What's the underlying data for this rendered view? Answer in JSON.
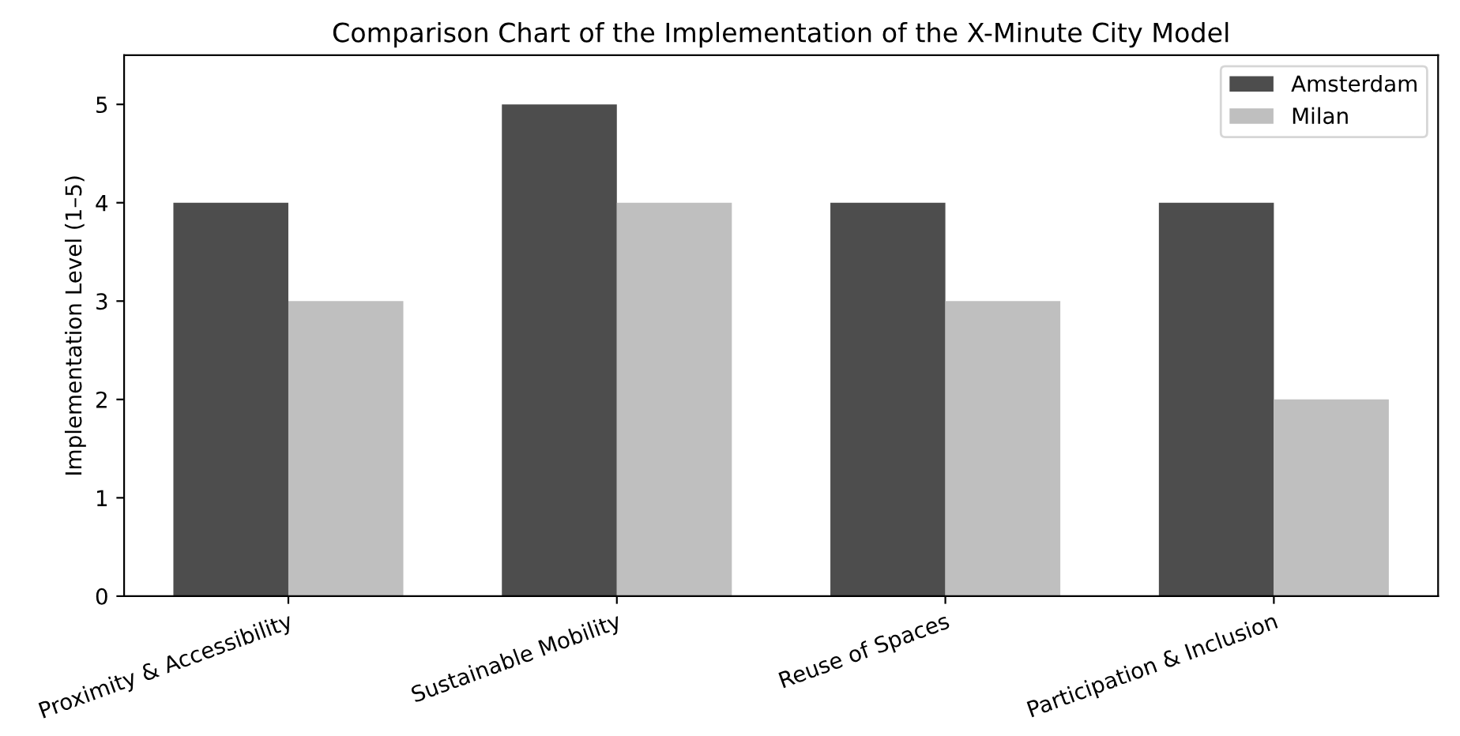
{
  "chart_data": {
    "type": "bar",
    "title": "Comparison Chart of the Implementation of the X-Minute City Model",
    "ylabel": "Implementation Level (1–5)",
    "categories": [
      "Proximity & Accessibility",
      "Sustainable Mobility",
      "Reuse of Spaces",
      "Participation & Inclusion"
    ],
    "series": [
      {
        "name": "Amsterdam",
        "color": "#4d4d4d",
        "values": [
          4,
          5,
          4,
          4
        ]
      },
      {
        "name": "Milan",
        "color": "#bfbfbf",
        "values": [
          3,
          4,
          3,
          2
        ]
      }
    ],
    "ylim": [
      0,
      5.5
    ],
    "yticks": [
      0,
      1,
      2,
      3,
      4,
      5
    ],
    "grid": false,
    "legend": "top right"
  }
}
